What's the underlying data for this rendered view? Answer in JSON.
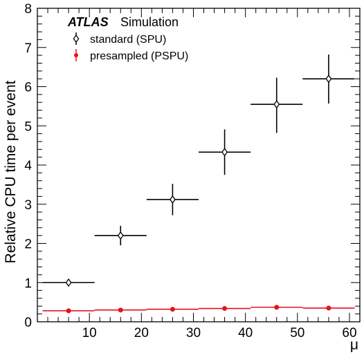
{
  "chart_data": {
    "type": "scatter",
    "xlabel": "μ",
    "ylabel": "Relative CPU time per event",
    "xlim": [
      0,
      62
    ],
    "ylim": [
      0,
      8
    ],
    "x_ticks": [
      10,
      20,
      30,
      40,
      50,
      60
    ],
    "y_ticks": [
      0,
      1,
      2,
      3,
      4,
      5,
      6,
      7,
      8
    ],
    "grid": false,
    "legend_position": "top-left",
    "experiment_label": "ATLAS",
    "experiment_sublabel": "Simulation",
    "series": [
      {
        "name": "standard (SPU)",
        "marker": "open-diamond",
        "color": "#000000",
        "x": [
          6,
          16,
          26,
          36,
          46,
          56
        ],
        "x_err": [
          5,
          5,
          5,
          5,
          5,
          5
        ],
        "y": [
          1.0,
          2.2,
          3.12,
          4.33,
          5.55,
          6.2
        ],
        "y_err_low": [
          0.07,
          0.25,
          0.4,
          0.58,
          0.73,
          0.63
        ],
        "y_err_high": [
          0.07,
          0.25,
          0.4,
          0.58,
          0.68,
          0.62
        ]
      },
      {
        "name": "presampled (PSPU)",
        "marker": "filled-circle",
        "color": "#e3141b",
        "x": [
          6,
          16,
          26,
          36,
          46,
          56
        ],
        "x_err": [
          5,
          5,
          5,
          5,
          5,
          5
        ],
        "y": [
          0.28,
          0.3,
          0.32,
          0.34,
          0.37,
          0.35
        ],
        "y_err_low": [
          0.005,
          0.005,
          0.005,
          0.005,
          0.005,
          0.005
        ],
        "y_err_high": [
          0.005,
          0.005,
          0.005,
          0.005,
          0.005,
          0.005
        ]
      }
    ]
  }
}
